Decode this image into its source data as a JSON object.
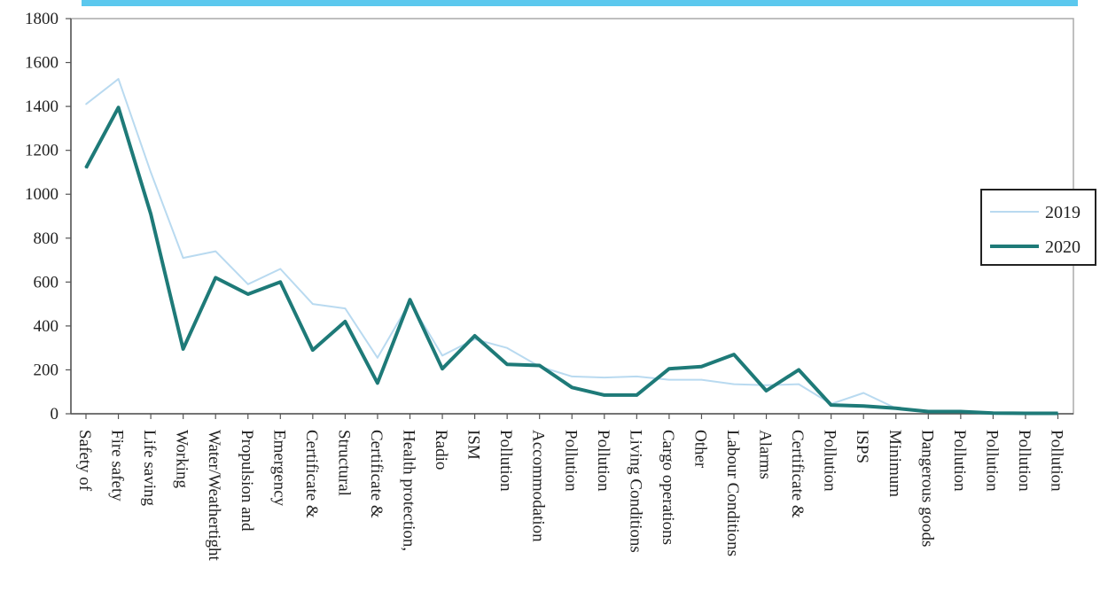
{
  "colors": {
    "top_bar": "#5bc8ee",
    "series_2019": "#b9daf0",
    "series_2020": "#1e7a78",
    "axis": "#555555",
    "plot_border": "#aaaaaa"
  },
  "chart_data": {
    "type": "line",
    "title": "",
    "xlabel": "",
    "ylabel": "",
    "ylim": [
      0,
      1800
    ],
    "yticks": [
      0,
      200,
      400,
      600,
      800,
      1000,
      1200,
      1400,
      1600,
      1800
    ],
    "grid": false,
    "legend_position": "right",
    "categories": [
      "Safety of",
      "Fire safety",
      "Life saving",
      "Working",
      "Water/Weathertight",
      "Propulsion and",
      "Emergency",
      "Certificate &",
      "Structural",
      "Certificate &",
      "Health protection,",
      "Radio",
      "ISM",
      "Pollution",
      "Accommodation",
      "Pollution",
      "Pollution",
      "Living Conditions",
      "Cargo operations",
      "Other",
      "Labour Conditions",
      "Alarms",
      "Certificate &",
      "Pollution",
      "ISPS",
      "Minimum",
      "Dangerous goods",
      "Pollution",
      "Pollution",
      "Pollution",
      "Pollution"
    ],
    "series": [
      {
        "name": "2019",
        "values": [
          1410,
          1525,
          1100,
          710,
          740,
          590,
          660,
          500,
          480,
          255,
          510,
          265,
          340,
          300,
          215,
          170,
          165,
          170,
          155,
          155,
          135,
          130,
          135,
          45,
          95,
          25,
          10,
          10,
          5,
          3,
          2
        ]
      },
      {
        "name": "2020",
        "values": [
          1120,
          1395,
          910,
          295,
          620,
          545,
          600,
          290,
          420,
          140,
          520,
          205,
          355,
          225,
          220,
          120,
          85,
          85,
          205,
          215,
          270,
          105,
          200,
          40,
          35,
          25,
          10,
          10,
          3,
          2,
          2
        ]
      }
    ]
  }
}
